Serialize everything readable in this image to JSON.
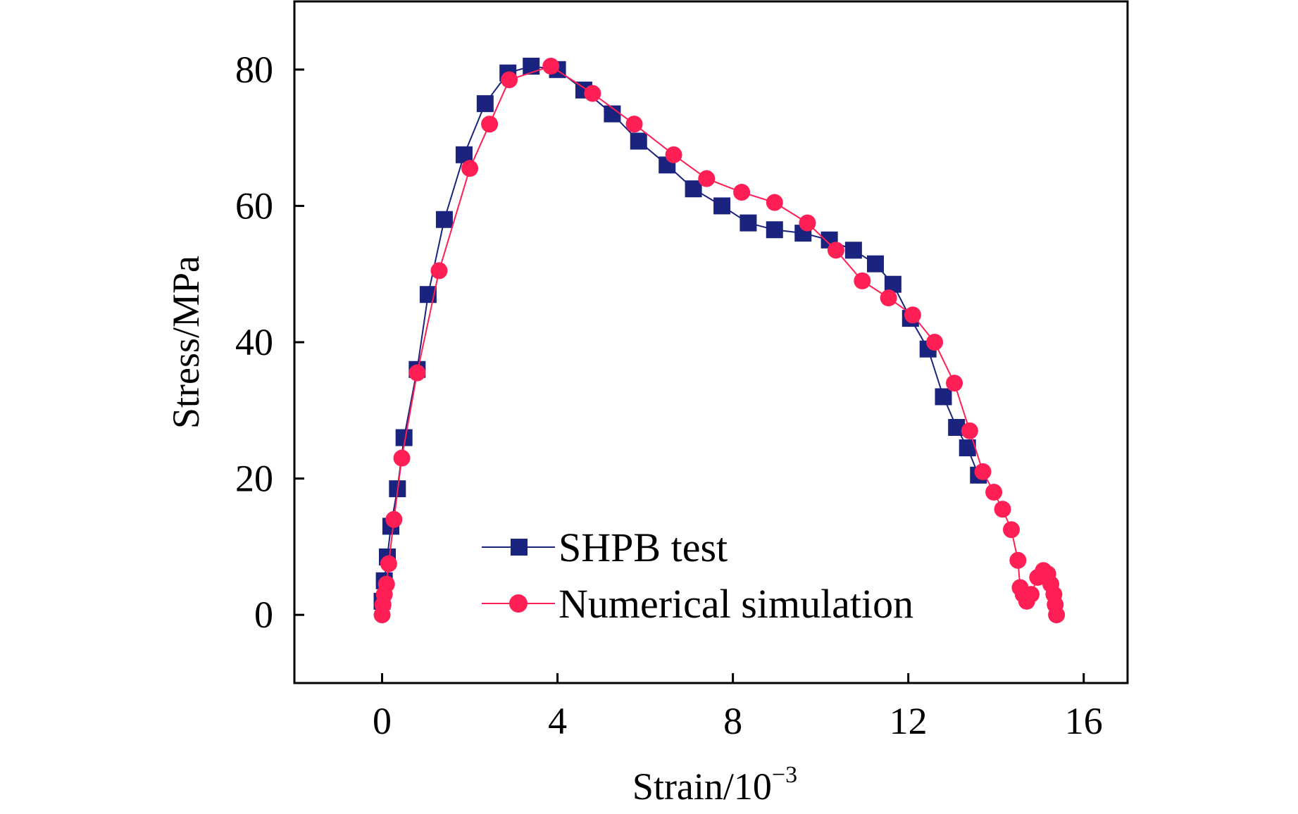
{
  "chart_data": {
    "type": "line",
    "xlabel": "Strain/10",
    "xlabel_exponent": "−3",
    "ylabel": "Stress/MPa",
    "xlim": [
      -2.0,
      17.0
    ],
    "ylim": [
      -10,
      90
    ],
    "x_ticks": [
      "0",
      "4",
      "8",
      "12",
      "16"
    ],
    "x_tick_values": [
      0,
      4,
      8,
      12,
      16
    ],
    "y_ticks": [
      "0",
      "20",
      "40",
      "60",
      "80"
    ],
    "y_tick_values": [
      0,
      20,
      40,
      60,
      80
    ],
    "grid": false,
    "legend_placement": "bottom-center",
    "series": [
      {
        "name": "SHPB test",
        "color": "#1a237e",
        "marker": "square",
        "x": [
          0.0,
          0.05,
          0.12,
          0.2,
          0.35,
          0.5,
          0.8,
          1.05,
          1.42,
          1.87,
          2.35,
          2.87,
          3.4,
          4.0,
          4.6,
          5.25,
          5.85,
          6.5,
          7.1,
          7.75,
          8.35,
          8.95,
          9.6,
          10.2,
          10.75,
          11.25,
          11.65,
          12.05,
          12.45,
          12.8,
          13.1,
          13.35,
          13.6
        ],
        "y": [
          2,
          5,
          8.5,
          13,
          18.5,
          26,
          36,
          47,
          58,
          67.5,
          75,
          79.5,
          80.5,
          80,
          77,
          73.5,
          69.5,
          66,
          62.5,
          60,
          57.5,
          56.5,
          56,
          55,
          53.5,
          51.5,
          48.5,
          43.5,
          39,
          32,
          27.5,
          24.5,
          20.5
        ]
      },
      {
        "name": "Numerical simulation",
        "color": "#ff1f55",
        "marker": "circle",
        "x": [
          0.0,
          0.02,
          0.05,
          0.1,
          0.15,
          0.27,
          0.45,
          0.8,
          1.3,
          2.0,
          2.45,
          2.9,
          3.85,
          4.8,
          5.75,
          6.65,
          7.4,
          8.2,
          8.95,
          9.7,
          10.35,
          10.95,
          11.55,
          12.1,
          12.6,
          13.05,
          13.4,
          13.7,
          13.95,
          14.15,
          14.35,
          14.5,
          14.55,
          14.62,
          14.7,
          14.8,
          14.95,
          15.08,
          15.18,
          15.25,
          15.32,
          15.35,
          15.38
        ],
        "y": [
          0,
          1.5,
          3,
          4.5,
          7.5,
          14,
          23,
          35.5,
          50.5,
          65.5,
          72,
          78.5,
          80.5,
          76.5,
          72,
          67.5,
          64,
          62,
          60.5,
          57.5,
          53.5,
          49,
          46.5,
          44,
          40,
          34,
          27,
          21,
          18,
          15.5,
          12.5,
          8,
          4,
          3,
          2,
          3,
          5.5,
          6.5,
          6,
          4.5,
          3,
          1.5,
          0
        ]
      }
    ]
  }
}
